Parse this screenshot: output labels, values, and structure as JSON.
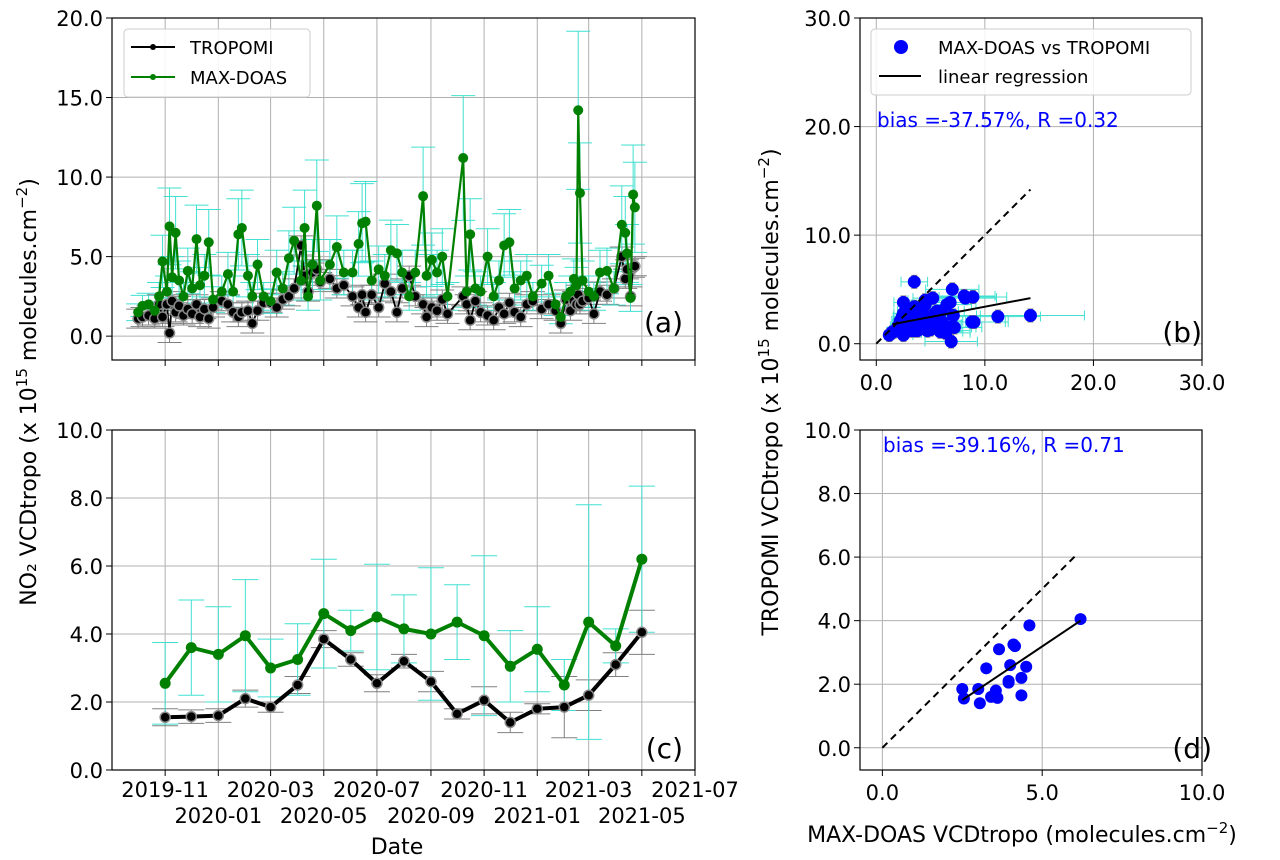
{
  "figure": {
    "ylabel_left": "NO₂ VCDtropo (x 10",
    "ylabel_left_exp": "15",
    "ylabel_left_tail": " molecules.cm",
    "ylabel_left_tail_exp": "−2",
    "ylabel_left_close": ")",
    "ylabel_right": "TROPOMI VCDtropo (x 10",
    "ylabel_right_exp": "15",
    "ylabel_right_tail": " molecules.cm",
    "ylabel_right_tail_exp": "−2",
    "ylabel_right_close": ")",
    "xlabel_left": "Date",
    "xlabel_right": "MAX-DOAS VCDtropo (molecules.cm",
    "xlabel_right_exp": "−2",
    "xlabel_right_close": ")",
    "colors": {
      "tropomi": "#000000",
      "maxdoas": "#008000",
      "scatter": "#0000ff",
      "maxdoas_err": "#40e0d0",
      "tropomi_err": "#808080",
      "grid": "#b0b0b0"
    }
  },
  "chart_data": [
    {
      "type": "line",
      "panel_label": "(a)",
      "xlim": [
        "2019-09-01",
        "2021-07-01"
      ],
      "xticks": [
        "2019-11",
        "2020-01",
        "2020-03",
        "2020-05",
        "2020-07",
        "2020-09",
        "2020-11",
        "2021-01",
        "2021-03",
        "2021-05",
        "2021-07"
      ],
      "ylim": [
        -1.5,
        20
      ],
      "yticks": [
        "0.0",
        "5.0",
        "10.0",
        "15.0",
        "20.0"
      ],
      "grid": true,
      "legend": {
        "placement": "top-left",
        "entries": [
          "TROPOMI",
          "MAX-DOAS"
        ]
      },
      "tropomi_err": 0.6,
      "maxdoas_err_fraction": 0.35,
      "points": [
        [
          "2019-10-01",
          1.1,
          1.5
        ],
        [
          "2019-10-06",
          1.2,
          1.9
        ],
        [
          "2019-10-13",
          1.3,
          2.0
        ],
        [
          "2019-10-20",
          1.1,
          1.6
        ],
        [
          "2019-10-25",
          2.0,
          2.5
        ],
        [
          "2019-10-29",
          1.2,
          4.7
        ],
        [
          "2019-11-03",
          2.0,
          2.8
        ],
        [
          "2019-11-06",
          0.2,
          6.9
        ],
        [
          "2019-11-09",
          2.2,
          3.7
        ],
        [
          "2019-11-13",
          1.5,
          6.5
        ],
        [
          "2019-11-17",
          1.9,
          3.5
        ],
        [
          "2019-11-22",
          1.3,
          2.5
        ],
        [
          "2019-11-27",
          1.7,
          4.1
        ],
        [
          "2019-12-02",
          1.4,
          3.0
        ],
        [
          "2019-12-07",
          2.0,
          6.1
        ],
        [
          "2019-12-11",
          1.2,
          3.2
        ],
        [
          "2019-12-16",
          1.7,
          3.8
        ],
        [
          "2019-12-21",
          1.1,
          5.9
        ],
        [
          "2019-12-26",
          1.8,
          2.3
        ],
        [
          "2020-01-05",
          2.2,
          2.8
        ],
        [
          "2020-01-12",
          2.0,
          3.9
        ],
        [
          "2020-01-18",
          1.5,
          2.8
        ],
        [
          "2020-01-24",
          1.2,
          6.4
        ],
        [
          "2020-01-28",
          1.5,
          6.8
        ],
        [
          "2020-02-04",
          1.6,
          3.8
        ],
        [
          "2020-02-09",
          0.8,
          2.5
        ],
        [
          "2020-02-15",
          1.6,
          4.5
        ],
        [
          "2020-02-22",
          2.1,
          2.5
        ],
        [
          "2020-03-01",
          2.1,
          2.2
        ],
        [
          "2020-03-08",
          1.8,
          4.0
        ],
        [
          "2020-03-15",
          2.3,
          3.0
        ],
        [
          "2020-03-22",
          2.5,
          4.9
        ],
        [
          "2020-03-28",
          3.0,
          6.0
        ],
        [
          "2020-04-05",
          5.7,
          3.5
        ],
        [
          "2020-04-09",
          3.8,
          6.8
        ],
        [
          "2020-04-13",
          2.8,
          2.5
        ],
        [
          "2020-04-18",
          4.0,
          4.5
        ],
        [
          "2020-04-23",
          4.2,
          8.2
        ],
        [
          "2020-04-27",
          3.4,
          3.5
        ],
        [
          "2020-05-08",
          3.6,
          4.5
        ],
        [
          "2020-05-16",
          3.0,
          5.6
        ],
        [
          "2020-05-24",
          3.2,
          4.0
        ],
        [
          "2020-06-03",
          2.5,
          4.0
        ],
        [
          "2020-06-10",
          1.8,
          5.8
        ],
        [
          "2020-06-14",
          2.6,
          7.1
        ],
        [
          "2020-06-18",
          1.5,
          7.2
        ],
        [
          "2020-06-25",
          2.6,
          3.5
        ],
        [
          "2020-07-03",
          1.8,
          4.2
        ],
        [
          "2020-07-10",
          3.3,
          3.8
        ],
        [
          "2020-07-17",
          2.8,
          5.4
        ],
        [
          "2020-07-24",
          1.5,
          5.2
        ],
        [
          "2020-07-30",
          3.0,
          4.0
        ],
        [
          "2020-08-07",
          3.8,
          2.5
        ],
        [
          "2020-08-14",
          2.5,
          4.0
        ],
        [
          "2020-08-23",
          2.0,
          8.8
        ],
        [
          "2020-08-27",
          1.2,
          3.8
        ],
        [
          "2020-09-02",
          1.8,
          4.8
        ],
        [
          "2020-09-08",
          1.6,
          4.0
        ],
        [
          "2020-09-14",
          2.3,
          5.0
        ],
        [
          "2020-09-20",
          1.4,
          2.5
        ],
        [
          "2020-10-08",
          2.5,
          11.2
        ],
        [
          "2020-10-12",
          2.0,
          2.8
        ],
        [
          "2020-10-16",
          1.0,
          6.4
        ],
        [
          "2020-10-22",
          2.2,
          3.0
        ],
        [
          "2020-10-28",
          1.5,
          2.8
        ],
        [
          "2020-11-05",
          1.3,
          5.0
        ],
        [
          "2020-11-12",
          1.0,
          2.5
        ],
        [
          "2020-11-18",
          1.8,
          3.5
        ],
        [
          "2020-11-24",
          1.4,
          5.7
        ],
        [
          "2020-11-30",
          2.1,
          5.9
        ],
        [
          "2020-12-06",
          1.5,
          3.0
        ],
        [
          "2020-12-13",
          1.2,
          3.5
        ],
        [
          "2020-12-20",
          2.0,
          3.8
        ],
        [
          "2020-12-27",
          2.2,
          2.5
        ],
        [
          "2021-01-06",
          1.7,
          3.3
        ],
        [
          "2021-01-14",
          2.0,
          3.8
        ],
        [
          "2021-01-22",
          1.6,
          2.0
        ],
        [
          "2021-01-28",
          0.8,
          1.2
        ],
        [
          "2021-02-03",
          2.3,
          2.5
        ],
        [
          "2021-02-08",
          1.6,
          2.8
        ],
        [
          "2021-02-12",
          2.2,
          3.6
        ],
        [
          "2021-02-15",
          2.0,
          3.2
        ],
        [
          "2021-02-17",
          2.6,
          14.2
        ],
        [
          "2021-02-19",
          2.0,
          9.0
        ],
        [
          "2021-02-22",
          2.2,
          3.5
        ],
        [
          "2021-03-01",
          2.4,
          2.8
        ],
        [
          "2021-03-07",
          1.4,
          2.5
        ],
        [
          "2021-03-14",
          2.8,
          4.0
        ],
        [
          "2021-03-22",
          2.6,
          4.1
        ],
        [
          "2021-03-30",
          3.0,
          3.0
        ],
        [
          "2021-04-08",
          5.0,
          7.0
        ],
        [
          "2021-04-12",
          3.6,
          6.5
        ],
        [
          "2021-04-14",
          4.2,
          5.2
        ],
        [
          "2021-04-18",
          2.5,
          2.4
        ],
        [
          "2021-04-21",
          4.3,
          8.9
        ],
        [
          "2021-04-23",
          4.4,
          8.1
        ]
      ]
    },
    {
      "type": "scatter",
      "panel_label": "(b)",
      "source": "pairs of panel (a)",
      "xlim": [
        -1.5,
        30
      ],
      "ylim": [
        -1.5,
        30
      ],
      "xticks": [
        "0.0",
        "10.0",
        "20.0",
        "30.0"
      ],
      "yticks": [
        "0.0",
        "10.0",
        "20.0",
        "30.0"
      ],
      "grid": true,
      "legend": {
        "placement": "top-right",
        "entries": [
          "MAX-DOAS vs TROPOMI",
          "linear regression"
        ]
      },
      "annotation": "bias =-37.57%, R =0.32",
      "regression": {
        "x": [
          1.5,
          14.2
        ],
        "y": [
          1.8,
          4.2
        ]
      },
      "one_to_one": [
        0,
        14.2
      ]
    },
    {
      "type": "line",
      "panel_label": "(c)",
      "xlim": [
        "2019-09-01",
        "2021-07-01"
      ],
      "ylim": [
        0,
        10
      ],
      "yticks": [
        "0.0",
        "2.0",
        "4.0",
        "6.0",
        "8.0",
        "10.0"
      ],
      "grid": true,
      "months": [
        "2019-11",
        "2019-12",
        "2020-01",
        "2020-02",
        "2020-03",
        "2020-04",
        "2020-05",
        "2020-06",
        "2020-07",
        "2020-08",
        "2020-09",
        "2020-10",
        "2020-11",
        "2020-12",
        "2021-01",
        "2021-02",
        "2021-03",
        "2021-04",
        "2021-05"
      ],
      "series": [
        {
          "name": "MAX-DOAS",
          "values": [
            2.55,
            3.6,
            3.4,
            3.95,
            3.0,
            3.25,
            4.6,
            4.1,
            4.5,
            4.15,
            4.0,
            4.35,
            3.95,
            3.05,
            3.55,
            2.5,
            4.35,
            3.65,
            6.2
          ],
          "err": [
            1.2,
            1.4,
            1.4,
            1.65,
            0.85,
            1.05,
            1.6,
            0.6,
            1.55,
            1.0,
            1.95,
            1.1,
            2.35,
            1.05,
            1.25,
            0.75,
            3.45,
            0.5,
            2.15
          ]
        },
        {
          "name": "TROPOMI",
          "values": [
            1.55,
            1.57,
            1.6,
            2.1,
            1.85,
            2.5,
            3.85,
            3.25,
            2.55,
            3.2,
            2.6,
            1.65,
            2.05,
            1.4,
            1.8,
            1.85,
            2.2,
            3.1,
            4.05
          ],
          "err": [
            0.25,
            0.2,
            0.2,
            0.25,
            0.15,
            0.25,
            0.25,
            0.2,
            0.25,
            0.2,
            0.3,
            0.15,
            0.4,
            0.3,
            0.15,
            0.9,
            0.45,
            0.35,
            0.65
          ]
        }
      ]
    },
    {
      "type": "scatter",
      "panel_label": "(d)",
      "source": "monthly pairs of panel (c)",
      "xlim": [
        -0.7,
        10
      ],
      "ylim": [
        -0.7,
        10
      ],
      "xticks": [
        "0.0",
        "5.0",
        "10.0"
      ],
      "yticks": [
        "0.0",
        "2.0",
        "4.0",
        "6.0",
        "8.0",
        "10.0"
      ],
      "grid": true,
      "annotation": "bias =-39.16%, R =0.71",
      "regression": {
        "x": [
          2.5,
          6.2
        ],
        "y": [
          1.5,
          4.0
        ]
      },
      "one_to_one": [
        0,
        6.05
      ]
    }
  ]
}
